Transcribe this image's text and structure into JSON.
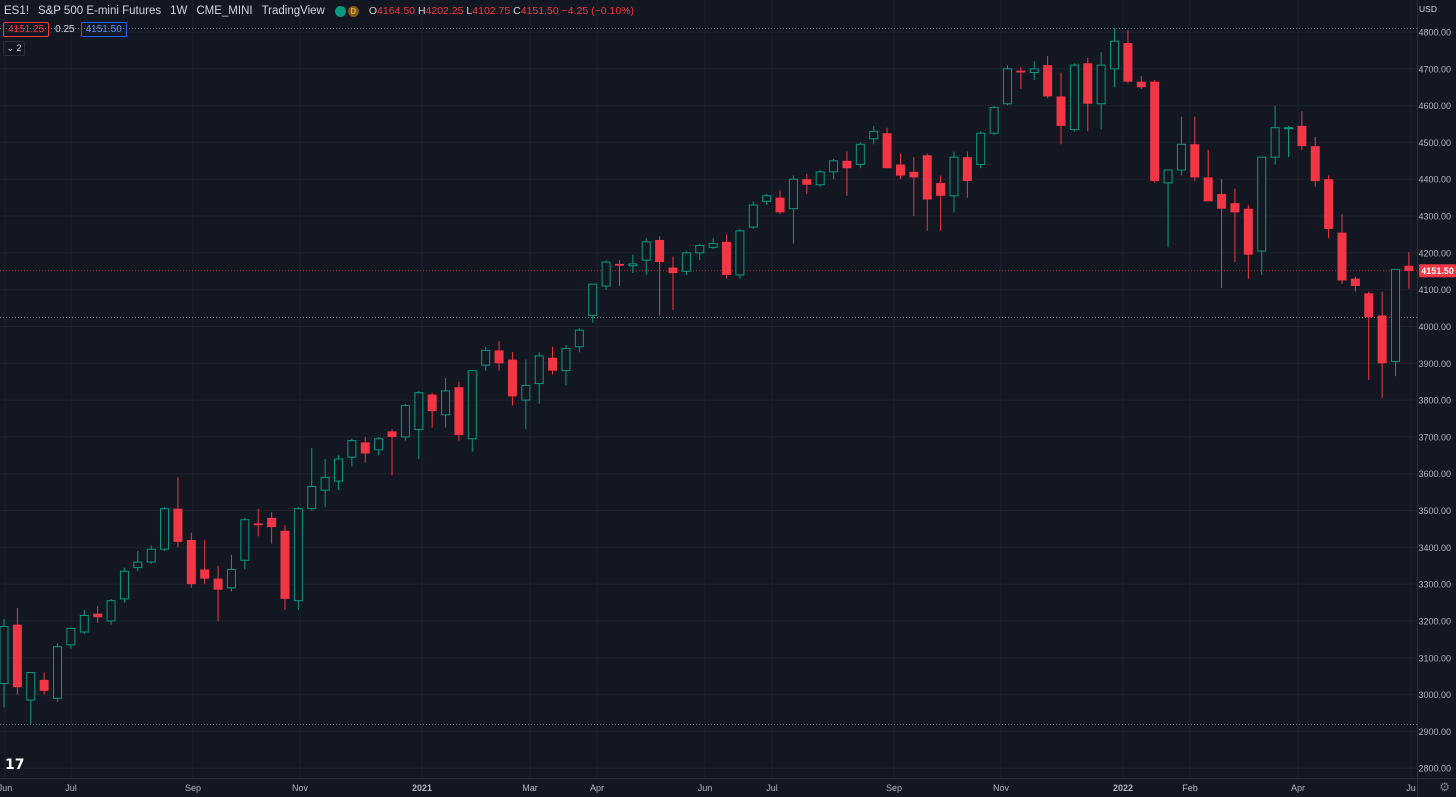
{
  "header": {
    "symbol": "ES1!",
    "name": "S&P 500 E-mini Futures",
    "interval": "1W",
    "exchange": "CME_MINI",
    "source": "TradingView",
    "d_badge": "D",
    "ohlc": {
      "o_label": "O",
      "o": "4164.50",
      "h_label": "H",
      "h": "4202.25",
      "l_label": "L",
      "l": "4102.75",
      "c_label": "C",
      "c": "4151.50",
      "change": "−4.25 (−0.10%)"
    }
  },
  "quote": {
    "bid": "4151.25",
    "spread": "0.25",
    "ask": "4151.50"
  },
  "collapse_label": "⌄ 2",
  "currency": "USD",
  "colors": {
    "up": "#089981",
    "down": "#f23645",
    "background": "#131722",
    "grid": "#1e222d"
  },
  "chart_data": {
    "type": "candlestick",
    "title": "S&P 500 E-mini Futures",
    "interval": "1W",
    "ylim": [
      2760,
      4825
    ],
    "y_ticks": [
      "2800.00",
      "2900.00",
      "3000.00",
      "3100.00",
      "3200.00",
      "3300.00",
      "3400.00",
      "3500.00",
      "3600.00",
      "3700.00",
      "3800.00",
      "3900.00",
      "4000.00",
      "4100.00",
      "4200.00",
      "4300.00",
      "4400.00",
      "4500.00",
      "4600.00",
      "4700.00",
      "4800.00"
    ],
    "x_ticks": [
      "Jun",
      "Jul",
      "Sep",
      "Nov",
      "2021",
      "Mar",
      "Apr",
      "Jun",
      "Jul",
      "Sep",
      "Nov",
      "2022",
      "Feb",
      "Apr",
      "Ju"
    ],
    "last_price_label": "4151.50",
    "last_price": 4151.5,
    "horizontal_lines": [
      4810,
      4025,
      2920
    ],
    "candles": [
      {
        "o": 3030,
        "h": 3205,
        "l": 2965,
        "c": 3185
      },
      {
        "o": 3190,
        "h": 3235,
        "l": 3000,
        "c": 3020
      },
      {
        "o": 2985,
        "h": 3060,
        "l": 2920,
        "c": 3060
      },
      {
        "o": 3040,
        "h": 3060,
        "l": 3000,
        "c": 3010
      },
      {
        "o": 2990,
        "h": 3140,
        "l": 2980,
        "c": 3130
      },
      {
        "o": 3135,
        "h": 3180,
        "l": 3125,
        "c": 3180
      },
      {
        "o": 3170,
        "h": 3230,
        "l": 3165,
        "c": 3215
      },
      {
        "o": 3220,
        "h": 3240,
        "l": 3195,
        "c": 3210
      },
      {
        "o": 3200,
        "h": 3260,
        "l": 3190,
        "c": 3255
      },
      {
        "o": 3260,
        "h": 3345,
        "l": 3250,
        "c": 3335
      },
      {
        "o": 3345,
        "h": 3390,
        "l": 3335,
        "c": 3360
      },
      {
        "o": 3360,
        "h": 3405,
        "l": 3355,
        "c": 3395
      },
      {
        "o": 3395,
        "h": 3510,
        "l": 3390,
        "c": 3505
      },
      {
        "o": 3505,
        "h": 3590,
        "l": 3400,
        "c": 3415
      },
      {
        "o": 3420,
        "h": 3440,
        "l": 3290,
        "c": 3300
      },
      {
        "o": 3340,
        "h": 3420,
        "l": 3300,
        "c": 3315
      },
      {
        "o": 3315,
        "h": 3350,
        "l": 3200,
        "c": 3285
      },
      {
        "o": 3290,
        "h": 3380,
        "l": 3280,
        "c": 3340
      },
      {
        "o": 3365,
        "h": 3480,
        "l": 3340,
        "c": 3475
      },
      {
        "o": 3465,
        "h": 3505,
        "l": 3430,
        "c": 3460
      },
      {
        "o": 3480,
        "h": 3495,
        "l": 3410,
        "c": 3455
      },
      {
        "o": 3445,
        "h": 3460,
        "l": 3230,
        "c": 3260
      },
      {
        "o": 3255,
        "h": 3510,
        "l": 3230,
        "c": 3505
      },
      {
        "o": 3505,
        "h": 3670,
        "l": 3500,
        "c": 3565
      },
      {
        "o": 3555,
        "h": 3640,
        "l": 3510,
        "c": 3590
      },
      {
        "o": 3580,
        "h": 3650,
        "l": 3555,
        "c": 3640
      },
      {
        "o": 3645,
        "h": 3695,
        "l": 3620,
        "c": 3690
      },
      {
        "o": 3685,
        "h": 3700,
        "l": 3630,
        "c": 3655
      },
      {
        "o": 3665,
        "h": 3700,
        "l": 3650,
        "c": 3695
      },
      {
        "o": 3715,
        "h": 3720,
        "l": 3595,
        "c": 3700
      },
      {
        "o": 3700,
        "h": 3790,
        "l": 3690,
        "c": 3785
      },
      {
        "o": 3720,
        "h": 3825,
        "l": 3640,
        "c": 3820
      },
      {
        "o": 3815,
        "h": 3820,
        "l": 3725,
        "c": 3770
      },
      {
        "o": 3760,
        "h": 3860,
        "l": 3725,
        "c": 3825
      },
      {
        "o": 3835,
        "h": 3850,
        "l": 3690,
        "c": 3705
      },
      {
        "o": 3695,
        "h": 3880,
        "l": 3660,
        "c": 3880
      },
      {
        "o": 3895,
        "h": 3945,
        "l": 3880,
        "c": 3935
      },
      {
        "o": 3935,
        "h": 3960,
        "l": 3880,
        "c": 3900
      },
      {
        "o": 3910,
        "h": 3930,
        "l": 3785,
        "c": 3810
      },
      {
        "o": 3800,
        "h": 3910,
        "l": 3720,
        "c": 3840
      },
      {
        "o": 3845,
        "h": 3930,
        "l": 3790,
        "c": 3920
      },
      {
        "o": 3915,
        "h": 3945,
        "l": 3870,
        "c": 3880
      },
      {
        "o": 3880,
        "h": 3950,
        "l": 3840,
        "c": 3940
      },
      {
        "o": 3945,
        "h": 3995,
        "l": 3930,
        "c": 3990
      },
      {
        "o": 4030,
        "h": 4115,
        "l": 4010,
        "c": 4115
      },
      {
        "o": 4110,
        "h": 4180,
        "l": 4100,
        "c": 4175
      },
      {
        "o": 4170,
        "h": 4180,
        "l": 4110,
        "c": 4165
      },
      {
        "o": 4165,
        "h": 4195,
        "l": 4145,
        "c": 4170
      },
      {
        "o": 4180,
        "h": 4240,
        "l": 4140,
        "c": 4230
      },
      {
        "o": 4235,
        "h": 4245,
        "l": 4030,
        "c": 4175
      },
      {
        "o": 4160,
        "h": 4190,
        "l": 4045,
        "c": 4145
      },
      {
        "o": 4150,
        "h": 4205,
        "l": 4140,
        "c": 4200
      },
      {
        "o": 4200,
        "h": 4225,
        "l": 4180,
        "c": 4220
      },
      {
        "o": 4215,
        "h": 4240,
        "l": 4210,
        "c": 4225
      },
      {
        "o": 4230,
        "h": 4250,
        "l": 4130,
        "c": 4140
      },
      {
        "o": 4140,
        "h": 4265,
        "l": 4130,
        "c": 4260
      },
      {
        "o": 4270,
        "h": 4340,
        "l": 4265,
        "c": 4330
      },
      {
        "o": 4340,
        "h": 4360,
        "l": 4330,
        "c": 4355
      },
      {
        "o": 4350,
        "h": 4370,
        "l": 4305,
        "c": 4310
      },
      {
        "o": 4320,
        "h": 4410,
        "l": 4225,
        "c": 4400
      },
      {
        "o": 4400,
        "h": 4415,
        "l": 4360,
        "c": 4385
      },
      {
        "o": 4385,
        "h": 4425,
        "l": 4380,
        "c": 4420
      },
      {
        "o": 4420,
        "h": 4455,
        "l": 4400,
        "c": 4450
      },
      {
        "o": 4450,
        "h": 4475,
        "l": 4355,
        "c": 4430
      },
      {
        "o": 4440,
        "h": 4500,
        "l": 4430,
        "c": 4495
      },
      {
        "o": 4510,
        "h": 4545,
        "l": 4495,
        "c": 4530
      },
      {
        "o": 4525,
        "h": 4540,
        "l": 4430,
        "c": 4430
      },
      {
        "o": 4440,
        "h": 4470,
        "l": 4400,
        "c": 4410
      },
      {
        "o": 4420,
        "h": 4460,
        "l": 4300,
        "c": 4405
      },
      {
        "o": 4465,
        "h": 4470,
        "l": 4260,
        "c": 4345
      },
      {
        "o": 4390,
        "h": 4410,
        "l": 4260,
        "c": 4355
      },
      {
        "o": 4355,
        "h": 4475,
        "l": 4310,
        "c": 4460
      },
      {
        "o": 4460,
        "h": 4475,
        "l": 4350,
        "c": 4395
      },
      {
        "o": 4440,
        "h": 4530,
        "l": 4430,
        "c": 4525
      },
      {
        "o": 4525,
        "h": 4600,
        "l": 4520,
        "c": 4595
      },
      {
        "o": 4605,
        "h": 4710,
        "l": 4600,
        "c": 4700
      },
      {
        "o": 4695,
        "h": 4705,
        "l": 4645,
        "c": 4690
      },
      {
        "o": 4690,
        "h": 4720,
        "l": 4670,
        "c": 4700
      },
      {
        "o": 4710,
        "h": 4735,
        "l": 4620,
        "c": 4625
      },
      {
        "o": 4625,
        "h": 4690,
        "l": 4495,
        "c": 4545
      },
      {
        "o": 4535,
        "h": 4715,
        "l": 4530,
        "c": 4710
      },
      {
        "o": 4715,
        "h": 4730,
        "l": 4530,
        "c": 4605
      },
      {
        "o": 4605,
        "h": 4745,
        "l": 4535,
        "c": 4710
      },
      {
        "o": 4700,
        "h": 4810,
        "l": 4650,
        "c": 4775
      },
      {
        "o": 4770,
        "h": 4805,
        "l": 4660,
        "c": 4665
      },
      {
        "o": 4665,
        "h": 4680,
        "l": 4645,
        "c": 4650
      },
      {
        "o": 4665,
        "h": 4670,
        "l": 4390,
        "c": 4395
      },
      {
        "o": 4390,
        "h": 4420,
        "l": 4215,
        "c": 4425
      },
      {
        "o": 4425,
        "h": 4570,
        "l": 4410,
        "c": 4495
      },
      {
        "o": 4495,
        "h": 4570,
        "l": 4395,
        "c": 4405
      },
      {
        "o": 4405,
        "h": 4480,
        "l": 4340,
        "c": 4340
      },
      {
        "o": 4360,
        "h": 4400,
        "l": 4105,
        "c": 4320
      },
      {
        "o": 4335,
        "h": 4375,
        "l": 4175,
        "c": 4310
      },
      {
        "o": 4320,
        "h": 4330,
        "l": 4130,
        "c": 4195
      },
      {
        "o": 4205,
        "h": 4460,
        "l": 4140,
        "c": 4460
      },
      {
        "o": 4460,
        "h": 4600,
        "l": 4440,
        "c": 4540
      },
      {
        "o": 4540,
        "h": 4545,
        "l": 4460,
        "c": 4540
      },
      {
        "o": 4545,
        "h": 4585,
        "l": 4480,
        "c": 4490
      },
      {
        "o": 4490,
        "h": 4515,
        "l": 4380,
        "c": 4395
      },
      {
        "o": 4400,
        "h": 4410,
        "l": 4240,
        "c": 4265
      },
      {
        "o": 4255,
        "h": 4305,
        "l": 4115,
        "c": 4125
      },
      {
        "o": 4130,
        "h": 4135,
        "l": 4095,
        "c": 4110
      },
      {
        "o": 4090,
        "h": 4095,
        "l": 3855,
        "c": 4025
      },
      {
        "o": 4030,
        "h": 4095,
        "l": 3805,
        "c": 3900
      },
      {
        "o": 3905,
        "h": 4155,
        "l": 3865,
        "c": 4155
      },
      {
        "o": 4165,
        "h": 4202,
        "l": 4103,
        "c": 4151
      }
    ]
  }
}
